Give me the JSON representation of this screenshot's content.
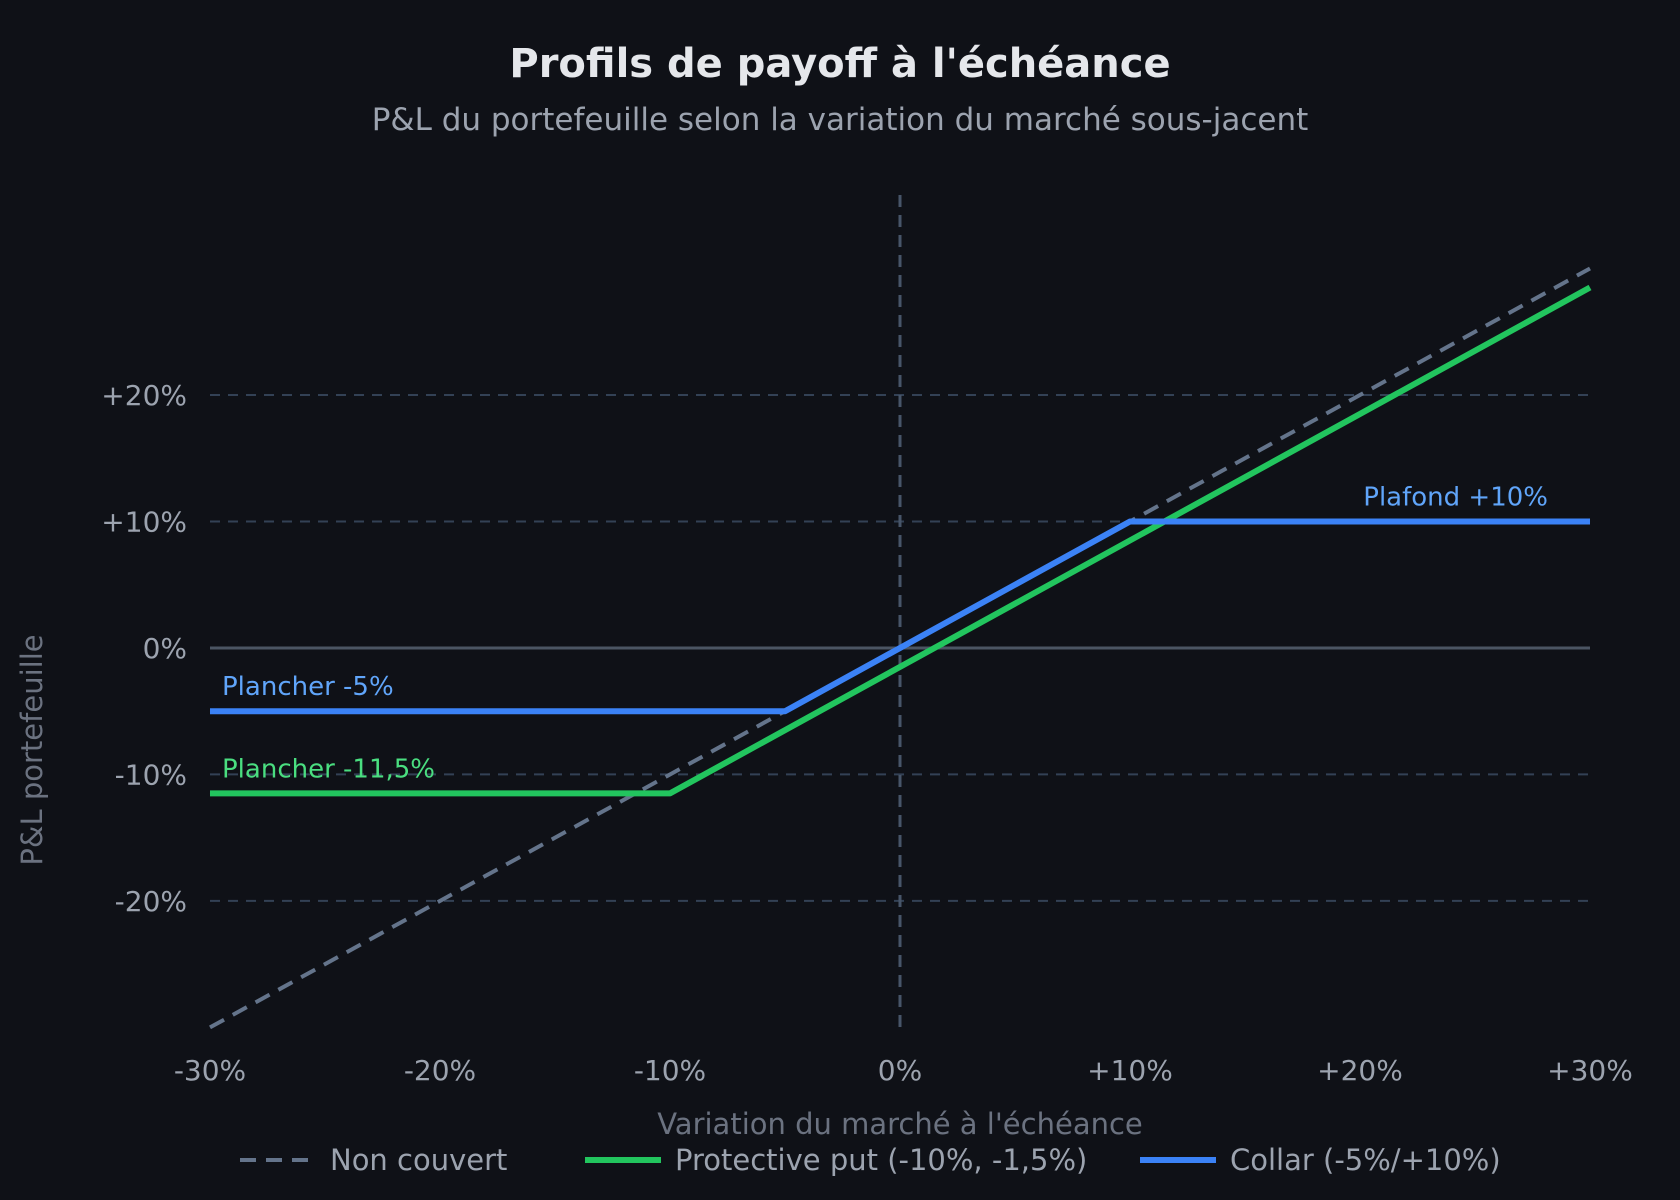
{
  "chart_data": {
    "type": "line",
    "title": "Profils de payoff à l'échéance",
    "subtitle": "P&L du portefeuille selon la variation du marché sous-jacent",
    "xlabel": "Variation du marché à l'échéance",
    "ylabel": "P&L portefeuille",
    "xlim": [
      -30,
      30
    ],
    "ylim": [
      -31,
      37
    ],
    "x_ticks": [
      -30,
      -20,
      -10,
      0,
      10,
      20,
      30
    ],
    "x_tick_labels": [
      "-30%",
      "-20%",
      "-10%",
      "0%",
      "+10%",
      "+20%",
      "+30%"
    ],
    "y_ticks": [
      20,
      10,
      0,
      -10,
      -20
    ],
    "y_tick_labels": [
      "+20%",
      "+10%",
      "0%",
      "-10%",
      "-20%"
    ],
    "grid": true,
    "legend_position": "bottom",
    "series": [
      {
        "name": "Non couvert",
        "color": "#64748b",
        "style": "dashed",
        "x": [
          -30,
          30
        ],
        "y": [
          -30,
          30
        ]
      },
      {
        "name": "Protective put (-10%, -1,5%)",
        "color": "#22c55e",
        "style": "solid",
        "x": [
          -30,
          -10,
          30
        ],
        "y": [
          -11.5,
          -11.5,
          28.5
        ]
      },
      {
        "name": "Collar (-5%/+10%)",
        "color": "#3b82f6",
        "style": "solid",
        "x": [
          -30,
          -5,
          10,
          30
        ],
        "y": [
          -5,
          -5,
          10,
          10
        ]
      }
    ],
    "annotations": [
      {
        "text": "Plancher -5%",
        "x": -30,
        "y": -5,
        "color": "#60a5fa",
        "anchor": "start"
      },
      {
        "text": "Plancher -11,5%",
        "x": -30,
        "y": -11.5,
        "color": "#4ade80",
        "anchor": "start"
      },
      {
        "text": "Plafond +10%",
        "x": 28,
        "y": 10,
        "color": "#60a5fa",
        "anchor": "end"
      }
    ]
  },
  "colors": {
    "background": "#0f1117",
    "title": "#e5e7eb",
    "subtitle": "#9ca3af",
    "tick": "#9ca3af",
    "axis_label": "#6b7280",
    "grid": "#334155",
    "zero_line": "#4b5563",
    "vertical_zero": "#475569"
  }
}
